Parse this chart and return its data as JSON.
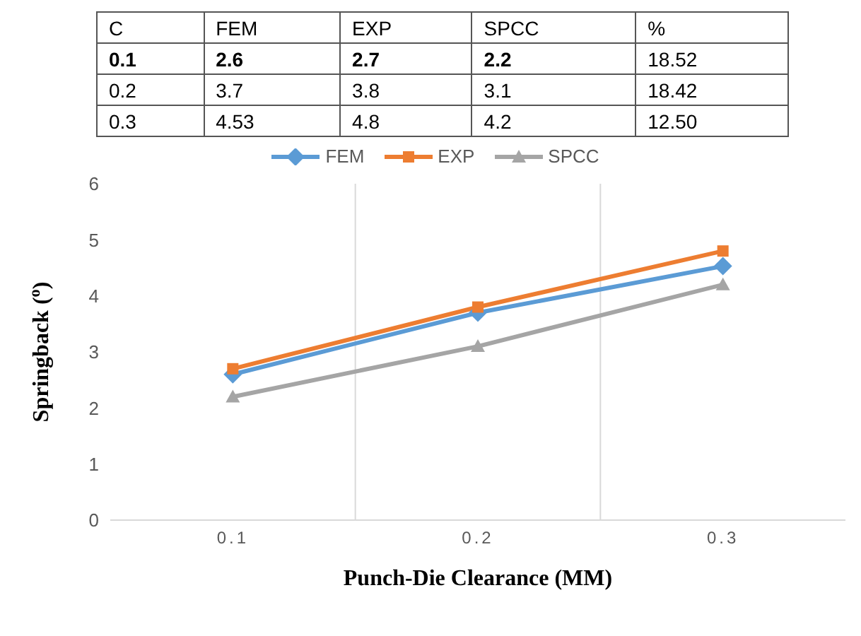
{
  "chart_data": [
    {
      "type": "other",
      "xlabel": "C",
      "categories": [
        "0.1",
        "0.2",
        "0.3"
      ],
      "data_labels": true,
      "series": [
        {
          "name": "FEM",
          "values": [
            2.6,
            3.7,
            4.53
          ]
        },
        {
          "name": "EXP",
          "values": [
            2.7,
            3.8,
            4.8
          ]
        },
        {
          "name": "SPCC",
          "values": [
            2.2,
            3.1,
            4.2
          ]
        },
        {
          "name": "%",
          "values": [
            18.52,
            18.42,
            12.5
          ],
          "value_labels": [
            "18.52",
            "18.42",
            "12.50"
          ]
        }
      ]
    },
    {
      "type": "line",
      "xlabel": "Punch-Die Clearance (MM)",
      "ylabel": "Springback ($^{o}$)",
      "x": [
        0.1,
        0.2,
        0.3
      ],
      "xlim": [
        0.05,
        0.35
      ],
      "xticks": [
        0.1,
        0.2,
        0.3
      ],
      "series": [
        {
          "name": "FEM",
          "color": "#5b9bd5",
          "marker": "diamond",
          "values": [
            2.6,
            3.7,
            4.53
          ]
        },
        {
          "name": "EXP",
          "color": "#ed7d31",
          "marker": "square",
          "values": [
            2.7,
            3.8,
            4.8
          ]
        },
        {
          "name": "SPCC",
          "color": "#a5a5a5",
          "marker": "triangle",
          "values": [
            2.2,
            3.1,
            4.2
          ]
        }
      ],
      "ylim": [
        0,
        6
      ],
      "yticks": [
        0,
        1,
        2,
        3,
        4,
        5,
        6
      ],
      "legend": "top",
      "ref_lines": [
        {
          "axis": "x",
          "value": 0.15,
          "color": "#d9d9d9"
        },
        {
          "axis": "x",
          "value": 0.25,
          "color": "#d9d9d9"
        }
      ]
    }
  ]
}
